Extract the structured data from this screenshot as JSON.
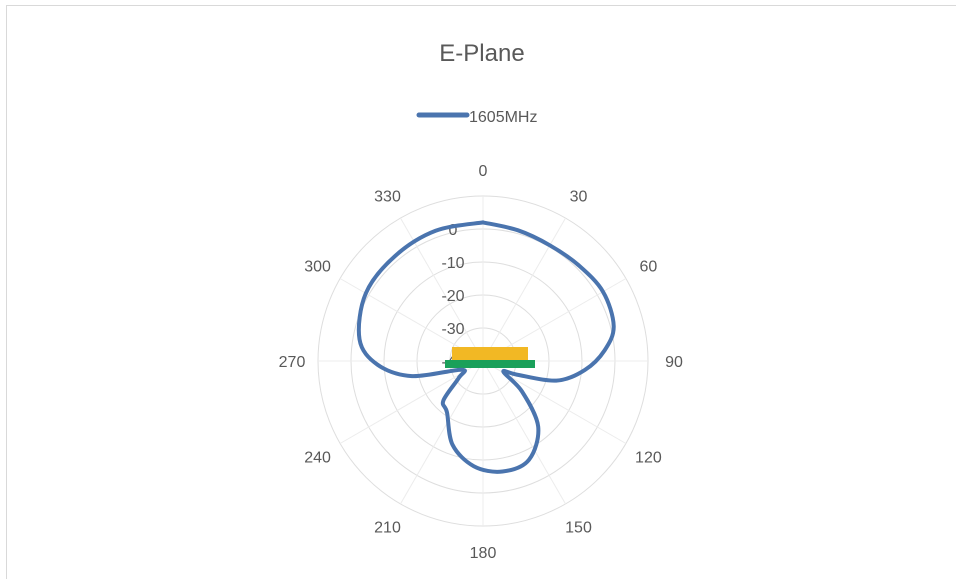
{
  "chart_data": {
    "type": "polar-line",
    "title": "E-Plane",
    "legend": {
      "position": "top"
    },
    "series": [
      {
        "name": "1605MHz",
        "color": "#4a74ae",
        "points": [
          {
            "angle": 0,
            "value": 2
          },
          {
            "angle": 15,
            "value": 1
          },
          {
            "angle": 30,
            "value": 0.5
          },
          {
            "angle": 45,
            "value": 1
          },
          {
            "angle": 60,
            "value": 2
          },
          {
            "angle": 75,
            "value": 1
          },
          {
            "angle": 85,
            "value": -3
          },
          {
            "angle": 95,
            "value": -9
          },
          {
            "angle": 105,
            "value": -17
          },
          {
            "angle": 112,
            "value": -29
          },
          {
            "angle": 118,
            "value": -33
          },
          {
            "angle": 128,
            "value": -25
          },
          {
            "angle": 140,
            "value": -14
          },
          {
            "angle": 155,
            "value": -7
          },
          {
            "angle": 170,
            "value": -6
          },
          {
            "angle": 185,
            "value": -8
          },
          {
            "angle": 200,
            "value": -13
          },
          {
            "angle": 215,
            "value": -21
          },
          {
            "angle": 225,
            "value": -23
          },
          {
            "angle": 235,
            "value": -31
          },
          {
            "angle": 248,
            "value": -33
          },
          {
            "angle": 258,
            "value": -18
          },
          {
            "angle": 268,
            "value": -8
          },
          {
            "angle": 280,
            "value": -2
          },
          {
            "angle": 300,
            "value": 1
          },
          {
            "angle": 320,
            "value": 1.5
          },
          {
            "angle": 340,
            "value": 2
          },
          {
            "angle": 360,
            "value": 2
          }
        ]
      }
    ],
    "angle_ticks": [
      "0",
      "30",
      "60",
      "90",
      "120",
      "150",
      "180",
      "210",
      "240",
      "270",
      "300",
      "330"
    ],
    "radial_ticks": [
      "0",
      "-10",
      "-20",
      "-30",
      "-40"
    ],
    "radial_range": [
      -40,
      10
    ],
    "gridlines": true,
    "board_colors": {
      "top": "#f2b824",
      "bottom": "#1aa05a"
    }
  }
}
